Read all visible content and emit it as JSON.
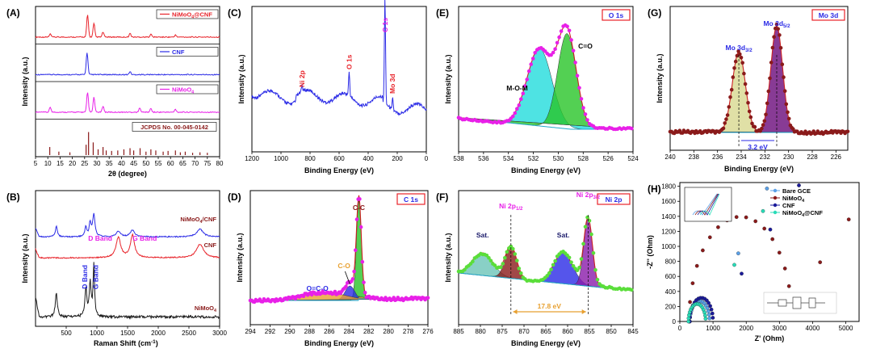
{
  "panel_labels": [
    "(A)",
    "(B)",
    "(C)",
    "(D)",
    "(E)",
    "(F)",
    "(G)",
    "(H)"
  ],
  "colors": {
    "red": "#e8232a",
    "blue": "#2b2be6",
    "magenta": "#e820e8",
    "black": "#1a1a1a",
    "maroon": "#8a1a1a"
  },
  "chart_data": [
    {
      "id": "A",
      "type": "line",
      "xlabel": "2θ (degree)",
      "ylabel": "Intensity (a.u.)",
      "xlim": [
        5,
        80
      ],
      "xticks": [
        5,
        10,
        15,
        20,
        25,
        30,
        35,
        40,
        45,
        50,
        55,
        60,
        65,
        70,
        75,
        80
      ],
      "series": [
        {
          "name": "NiMoO4@CNF",
          "name_main": "NiMoO",
          "name_sub": "4",
          "name_tail": "@CNF",
          "color": "#e8232a",
          "peaks": [
            [
              11,
              0.12
            ],
            [
              26.2,
              0.9
            ],
            [
              28.8,
              0.55
            ],
            [
              32.5,
              0.2
            ],
            [
              43.5,
              0.15
            ],
            [
              52,
              0.12
            ],
            [
              62,
              0.08
            ]
          ]
        },
        {
          "name": "CNF",
          "color": "#2b2be6",
          "peaks": [
            [
              26,
              0.9
            ],
            [
              43.5,
              0.12
            ]
          ]
        },
        {
          "name": "NiMoO4",
          "name_main": "NiMoO",
          "name_sub": "4",
          "name_tail": "",
          "color": "#e820e8",
          "peaks": [
            [
              11,
              0.2
            ],
            [
              26.2,
              0.8
            ],
            [
              28.8,
              0.6
            ],
            [
              32.5,
              0.25
            ],
            [
              47.5,
              0.18
            ],
            [
              52,
              0.15
            ],
            [
              62,
              0.12
            ]
          ]
        }
      ],
      "reference": {
        "name": "JCPDS No. 00-045-0142",
        "color": "#8a1a1a",
        "lines": [
          [
            10.8,
            0.35
          ],
          [
            14.5,
            0.15
          ],
          [
            19,
            0.12
          ],
          [
            25.6,
            0.45
          ],
          [
            26.6,
            1.0
          ],
          [
            28.5,
            0.55
          ],
          [
            30.5,
            0.25
          ],
          [
            32.5,
            0.35
          ],
          [
            33.8,
            0.2
          ],
          [
            36,
            0.18
          ],
          [
            38.5,
            0.2
          ],
          [
            41,
            0.25
          ],
          [
            43.5,
            0.3
          ],
          [
            45,
            0.2
          ],
          [
            47.6,
            0.3
          ],
          [
            50,
            0.15
          ],
          [
            52,
            0.25
          ],
          [
            54,
            0.2
          ],
          [
            57,
            0.15
          ],
          [
            59,
            0.18
          ],
          [
            62,
            0.2
          ],
          [
            64,
            0.12
          ],
          [
            66,
            0.15
          ],
          [
            69,
            0.1
          ],
          [
            72,
            0.12
          ],
          [
            75,
            0.1
          ]
        ]
      }
    },
    {
      "id": "B",
      "type": "line",
      "xlabel": "Raman Shift (cm",
      "xlabel_sup": "-1",
      "xlabel_tail": ")",
      "ylabel": "Intensity (a.u.)",
      "xlim": [
        0,
        3000
      ],
      "xticks": [
        500,
        1000,
        1500,
        2000,
        2500,
        3000
      ],
      "series": [
        {
          "name": "NiMoO4/CNF",
          "name_main": "NiMoO",
          "name_sub": "4",
          "name_tail": "/CNF",
          "color": "#2b2be6",
          "peaks": [
            [
              340,
              0.5
            ],
            [
              820,
              0.45
            ],
            [
              890,
              0.6
            ],
            [
              950,
              1.0
            ],
            [
              1350,
              0.25
            ],
            [
              1580,
              0.3
            ],
            [
              2680,
              0.35
            ]
          ]
        },
        {
          "name": "CNF",
          "color": "#e8232a",
          "peaks": [
            [
              1350,
              0.9
            ],
            [
              1580,
              1.0
            ],
            [
              2680,
              0.6
            ]
          ]
        },
        {
          "name": "NiMoO4",
          "name_main": "NiMoO",
          "name_sub": "4",
          "name_tail": "",
          "color": "#1a1a1a",
          "peaks": [
            [
              340,
              0.45
            ],
            [
              820,
              0.55
            ],
            [
              890,
              0.65
            ],
            [
              950,
              1.0
            ]
          ]
        }
      ],
      "annotations": [
        {
          "text": "D Band",
          "color": "#e820e8"
        },
        {
          "text": "G Band",
          "color": "#e820e8"
        },
        {
          "text": "D Band",
          "color": "#2b2be6"
        },
        {
          "text": "G Band",
          "color": "#2b2be6"
        }
      ]
    },
    {
      "id": "C",
      "type": "line",
      "xlabel": "Binding Energy (eV)",
      "ylabel": "Intensity (a.u.)",
      "xlim": [
        1200,
        0
      ],
      "xticks": [
        1200,
        1000,
        800,
        600,
        400,
        200,
        0
      ],
      "peaks": [
        [
          855,
          0.06
        ],
        [
          531,
          0.22
        ],
        [
          284.6,
          1.0
        ],
        [
          232,
          0.12
        ]
      ],
      "labels": [
        {
          "text": "Ni 2p",
          "color": "#e8232a"
        },
        {
          "text": "O 1s",
          "color": "#e8232a"
        },
        {
          "text": "C 1s",
          "color": "#e820e8"
        },
        {
          "text": "Mo 3d",
          "color": "#e8232a"
        }
      ]
    },
    {
      "id": "D",
      "type": "line",
      "xlabel": "Binding Energy (eV)",
      "ylabel": "Intensity (a.u.)",
      "xlim": [
        294,
        276
      ],
      "xticks": [
        294,
        292,
        290,
        288,
        286,
        284,
        282,
        280,
        278,
        276
      ],
      "tag": "C 1s",
      "components": [
        {
          "name": "C-C",
          "center": 283.0,
          "color": "#28c428"
        },
        {
          "name": "C-O",
          "center": 283.9,
          "color": "#2b2be6"
        },
        {
          "name": "O=C-O",
          "center": 286.5,
          "color": "#e8a030"
        }
      ]
    },
    {
      "id": "E",
      "type": "line",
      "xlabel": "Binding Energy (eV)",
      "ylabel": "Intensity (a.u.)",
      "xlim": [
        538,
        524
      ],
      "xticks": [
        538,
        536,
        534,
        532,
        530,
        528,
        526,
        524
      ],
      "tag": "O 1s",
      "components": [
        {
          "name": "M-O-M",
          "center": 531.5,
          "color": "#22dcdc"
        },
        {
          "name": "C=O",
          "center": 529.3,
          "color": "#28c428"
        }
      ]
    },
    {
      "id": "F",
      "type": "line",
      "xlabel": "Binding Energy (eV)",
      "ylabel": "Intensity (a.u.)",
      "xlim": [
        885,
        845
      ],
      "xticks": [
        885,
        880,
        875,
        870,
        865,
        860,
        855,
        850,
        845
      ],
      "tag": "Ni 2p",
      "components": [
        {
          "name": "Sat.",
          "center": 879.5,
          "color": "#6cc4b8"
        },
        {
          "name": "Ni 2p1/2",
          "center": 873,
          "color": "#8a1a1a"
        },
        {
          "name": "Sat.",
          "center": 861,
          "color": "#2b2be6"
        },
        {
          "name": "Ni 2p3/2",
          "center": 855.3,
          "color": "#8a1aaa"
        }
      ],
      "splitting": "17.8 eV",
      "peak_labels": [
        {
          "main": "Ni 2p",
          "sub": "1/2"
        },
        {
          "main": "Ni 2p",
          "sub": "3/2"
        }
      ]
    },
    {
      "id": "G",
      "type": "line",
      "xlabel": "Binding Energy (eV)",
      "ylabel": "Intensity (a.u.)",
      "xlim": [
        240,
        225
      ],
      "xticks": [
        240,
        238,
        236,
        234,
        232,
        230,
        228,
        226
      ],
      "tag": "Mo 3d",
      "components": [
        {
          "name": "Mo 3d3/2",
          "center": 234.2,
          "color": "#d8d890"
        },
        {
          "name": "Mo 3d5/2",
          "center": 231.0,
          "color": "#6a0a7a"
        }
      ],
      "splitting": "3.2 eV",
      "peak_labels": [
        {
          "main": "Mo 3d",
          "sub": "3/2"
        },
        {
          "main": "Mo 3d",
          "sub": "5/2"
        }
      ]
    },
    {
      "id": "H",
      "type": "scatter",
      "xlabel": "Z' (Ohm)",
      "ylabel": "-Z'' (Ohm)",
      "xlim": [
        0,
        5400
      ],
      "ylim": [
        0,
        1850
      ],
      "xticks": [
        0,
        1000,
        2000,
        3000,
        4000,
        5000
      ],
      "yticks": [
        0,
        200,
        400,
        600,
        800,
        1000,
        1200,
        1400,
        1600,
        1800
      ],
      "series": [
        {
          "name": "Bare GCE",
          "color": "#5aa0e8",
          "semicircle": [
            300,
            600
          ],
          "slope": 1.0
        },
        {
          "name": "NiMoO4",
          "name_main": "NiMoO",
          "name_sub": "4",
          "name_tail": "",
          "color": "#8a1a1a",
          "semicircle": [
            280,
            3100
          ],
          "slope": 0.66
        },
        {
          "name": "CNF",
          "color": "#1a1a9a",
          "semicircle": [
            300,
            700
          ],
          "slope": 0.68
        },
        {
          "name": "NiMoO4@CNF",
          "name_main": "NiMoO",
          "name_sub": "4",
          "name_tail": "@CNF",
          "color": "#28dcb8",
          "semicircle": [
            260,
            520
          ],
          "slope": 0.83
        }
      ]
    }
  ]
}
